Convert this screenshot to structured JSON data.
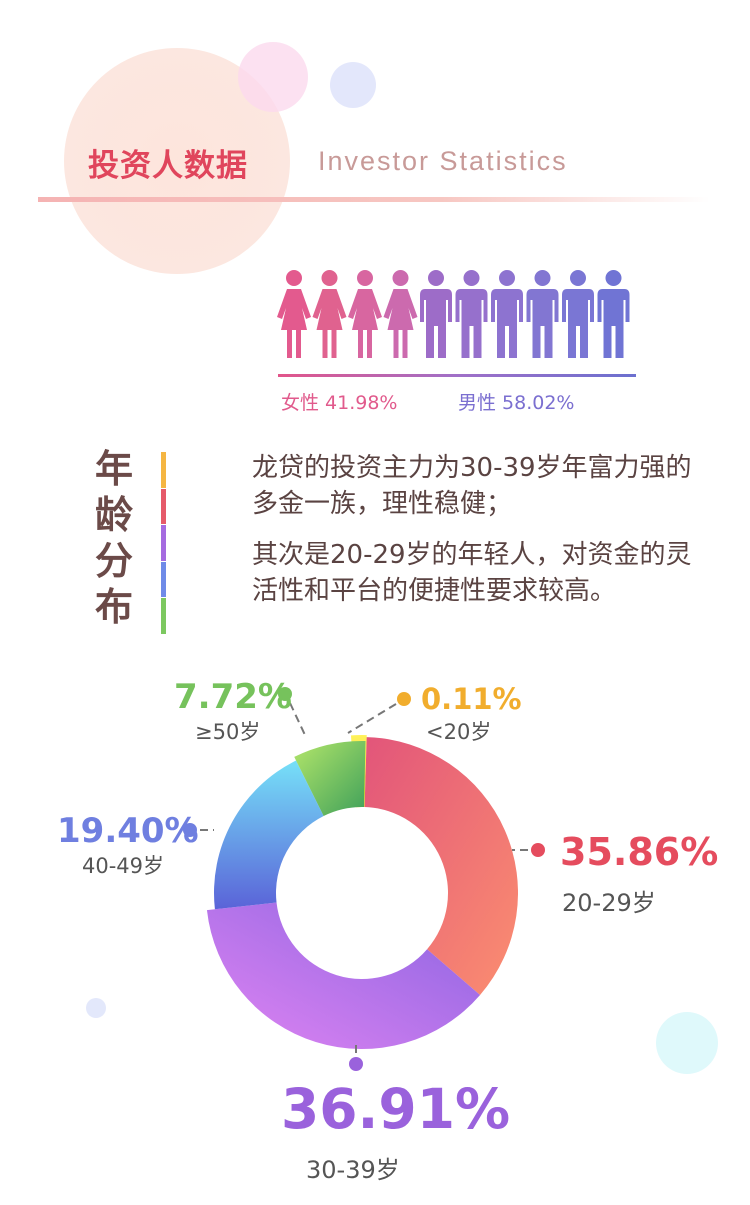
{
  "header": {
    "title_cn": "投资人数据",
    "title_en": "Investor Statistics"
  },
  "gender": {
    "female_label": "女性 41.98%",
    "male_label": "男性 58.02%",
    "female_share": 0.4198,
    "male_share": 0.5802,
    "female_icon_count": 4,
    "male_icon_count": 6,
    "female_icon": "female-person-icon",
    "male_icon": "male-person-icon",
    "female_color": "#e2558a",
    "male_color": "#7b6fd0"
  },
  "age_section": {
    "heading_chars": [
      "年",
      "龄",
      "分",
      "布"
    ],
    "bar_colors": [
      "#f5b642",
      "#e65a6a",
      "#a56be0",
      "#6f8be8",
      "#7cc860"
    ],
    "paragraph_1": "龙贷的投资主力为30-39岁年富力强的多金一族，理性稳健；",
    "paragraph_2": "其次是20-29岁的年轻人，对资金的灵活性和平台的便捷性要求较高。"
  },
  "chart_data": {
    "type": "pie",
    "donut": true,
    "categories": [
      "<20岁",
      "20-29岁",
      "30-39岁",
      "40-49岁",
      "≥50岁"
    ],
    "values": [
      0.11,
      35.86,
      36.91,
      19.4,
      7.72
    ],
    "labels": [
      "0.11%",
      "35.86%",
      "36.91%",
      "19.40%",
      "7.72%"
    ],
    "colors": [
      "#f5e23a",
      "#ec6a78",
      "#a96ef0",
      "#6fa8f0",
      "#74c85c"
    ]
  }
}
